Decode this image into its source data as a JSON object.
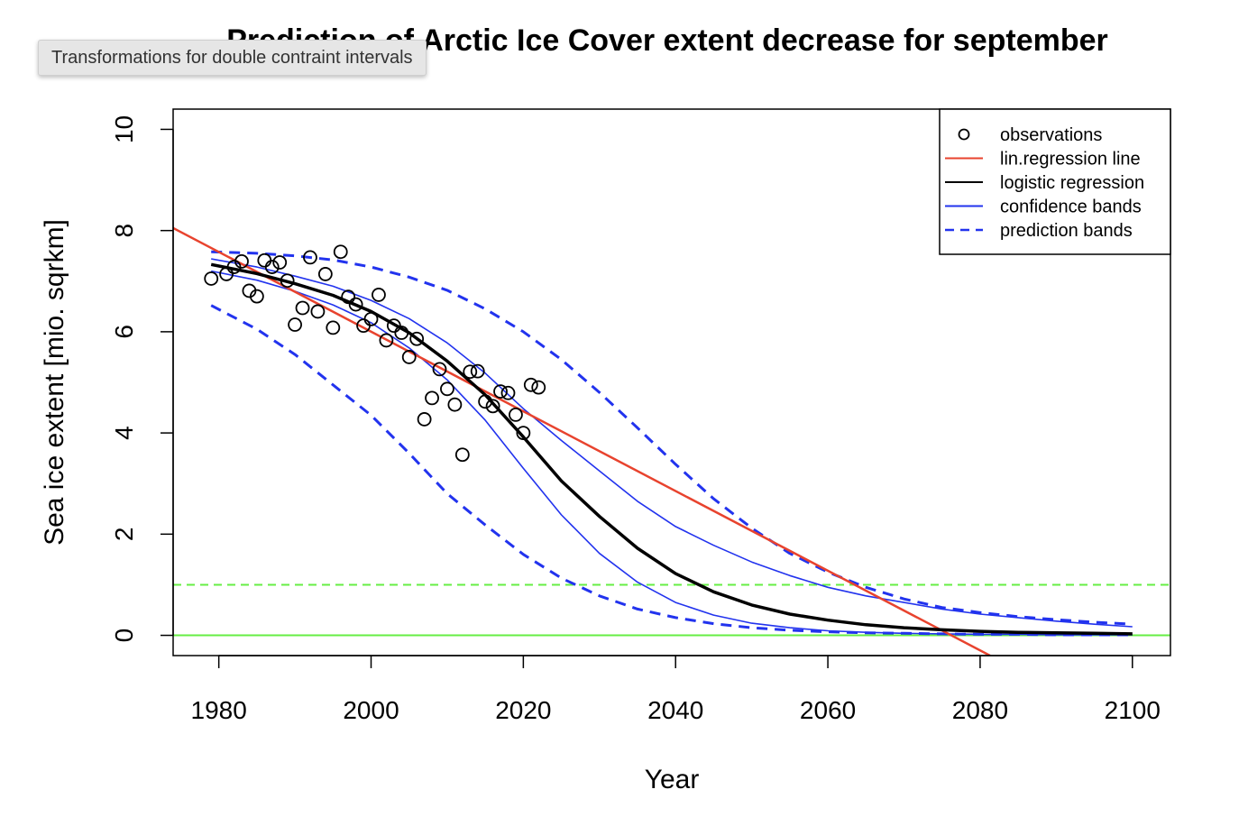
{
  "tooltip": {
    "text": "Transformations for double contraint intervals"
  },
  "chart_data": {
    "type": "scatter",
    "title": "Prediction of Arctic Ice Cover extent decrease for september",
    "xlabel": "Year",
    "ylabel": "Sea ice extent [mio. sqrkm]",
    "xlim": [
      1974,
      2105
    ],
    "ylim": [
      -0.4,
      10.4
    ],
    "xticks": [
      1980,
      2000,
      2020,
      2040,
      2060,
      2080,
      2100
    ],
    "yticks": [
      0,
      2,
      4,
      6,
      8,
      10
    ],
    "legend": {
      "position": "top-right",
      "entries": [
        {
          "label": "observations",
          "kind": "point",
          "color": "#000000"
        },
        {
          "label": "lin.regression line",
          "kind": "line",
          "color": "#e8432e"
        },
        {
          "label": "logistic regression",
          "kind": "line",
          "color": "#000000"
        },
        {
          "label": "confidence bands",
          "kind": "line",
          "color": "#2233ee"
        },
        {
          "label": "prediction bands",
          "kind": "dashed",
          "color": "#2233ee"
        }
      ]
    },
    "observations": {
      "name": "observations",
      "x": [
        1979,
        1981,
        1982,
        1983,
        1984,
        1985,
        1986,
        1987,
        1988,
        1989,
        1990,
        1991,
        1992,
        1993,
        1994,
        1995,
        1996,
        1997,
        1998,
        1999,
        2000,
        2001,
        2002,
        2003,
        2004,
        2005,
        2006,
        2007,
        2008,
        2009,
        2010,
        2011,
        2012,
        2013,
        2014,
        2015,
        2016,
        2017,
        2018,
        2019,
        2020,
        2021,
        2022
      ],
      "y": [
        7.05,
        7.14,
        7.28,
        7.39,
        6.81,
        6.7,
        7.41,
        7.28,
        7.37,
        7.01,
        6.14,
        6.47,
        7.47,
        6.4,
        7.14,
        6.08,
        7.58,
        6.69,
        6.54,
        6.12,
        6.25,
        6.73,
        5.83,
        6.12,
        5.98,
        5.5,
        5.86,
        4.27,
        4.69,
        5.26,
        4.87,
        4.56,
        3.57,
        5.21,
        5.22,
        4.62,
        4.53,
        4.82,
        4.79,
        4.36,
        4.0,
        4.95,
        4.9
      ]
    },
    "lin_regression": {
      "name": "lin.regression line",
      "x": [
        1974,
        2081.3
      ],
      "y": [
        8.05,
        -0.4
      ],
      "color": "#e8432e"
    },
    "logistic_regression": {
      "name": "logistic regression",
      "x": [
        1979,
        1985,
        1990,
        1995,
        2000,
        2005,
        2010,
        2015,
        2020,
        2025,
        2030,
        2035,
        2040,
        2045,
        2050,
        2055,
        2060,
        2065,
        2070,
        2075,
        2080,
        2085,
        2090,
        2095,
        2100
      ],
      "y": [
        7.33,
        7.15,
        6.95,
        6.72,
        6.4,
        5.98,
        5.42,
        4.75,
        3.92,
        3.05,
        2.35,
        1.72,
        1.22,
        0.86,
        0.6,
        0.42,
        0.3,
        0.21,
        0.15,
        0.11,
        0.08,
        0.06,
        0.05,
        0.04,
        0.03
      ],
      "color": "#000000"
    },
    "confidence_upper": {
      "x": [
        1979,
        1985,
        1990,
        1995,
        2000,
        2005,
        2010,
        2015,
        2020,
        2025,
        2030,
        2035,
        2040,
        2045,
        2050,
        2055,
        2060,
        2065,
        2070,
        2075,
        2080,
        2085,
        2090,
        2095,
        2100
      ],
      "y": [
        7.44,
        7.28,
        7.1,
        6.9,
        6.62,
        6.26,
        5.78,
        5.18,
        4.48,
        3.85,
        3.25,
        2.65,
        2.15,
        1.78,
        1.45,
        1.18,
        0.95,
        0.78,
        0.65,
        0.52,
        0.42,
        0.35,
        0.28,
        0.22,
        0.17
      ],
      "color": "#2233ee"
    },
    "confidence_lower": {
      "x": [
        1979,
        1985,
        1990,
        1995,
        2000,
        2005,
        2010,
        2015,
        2020,
        2025,
        2030,
        2035,
        2040,
        2045,
        2050,
        2055,
        2060,
        2065,
        2070,
        2075,
        2080,
        2085,
        2090,
        2095,
        2100
      ],
      "y": [
        7.2,
        7.02,
        6.8,
        6.53,
        6.18,
        5.68,
        5.05,
        4.25,
        3.3,
        2.38,
        1.62,
        1.05,
        0.65,
        0.4,
        0.24,
        0.15,
        0.09,
        0.06,
        0.04,
        0.03,
        0.02,
        0.02,
        0.01,
        0.01,
        0.01
      ],
      "color": "#2233ee"
    },
    "prediction_upper": {
      "x": [
        1979,
        1985,
        1990,
        1995,
        2000,
        2005,
        2010,
        2015,
        2020,
        2025,
        2030,
        2035,
        2040,
        2045,
        2050,
        2055,
        2060,
        2065,
        2070,
        2075,
        2080,
        2085,
        2090,
        2095,
        2100
      ],
      "y": [
        7.58,
        7.55,
        7.5,
        7.42,
        7.28,
        7.08,
        6.82,
        6.45,
        6.0,
        5.45,
        4.8,
        4.1,
        3.38,
        2.7,
        2.12,
        1.62,
        1.25,
        0.95,
        0.72,
        0.55,
        0.45,
        0.37,
        0.31,
        0.26,
        0.22
      ],
      "color": "#2233ee"
    },
    "prediction_lower": {
      "x": [
        1979,
        1985,
        1990,
        1995,
        2000,
        2005,
        2010,
        2015,
        2020,
        2025,
        2030,
        2035,
        2040,
        2045,
        2050,
        2055,
        2060,
        2065,
        2070,
        2075,
        2080,
        2085,
        2090,
        2095,
        2100
      ],
      "y": [
        6.52,
        6.05,
        5.55,
        4.95,
        4.35,
        3.6,
        2.8,
        2.18,
        1.6,
        1.13,
        0.78,
        0.52,
        0.35,
        0.23,
        0.15,
        0.1,
        0.07,
        0.05,
        0.04,
        0.03,
        0.02,
        0.02,
        0.01,
        0.01,
        0.01
      ],
      "color": "#2233ee"
    },
    "hlines": [
      {
        "y": 1,
        "style": "dashed",
        "color": "#66ee44"
      },
      {
        "y": 0,
        "style": "solid",
        "color": "#66ee44"
      }
    ]
  }
}
